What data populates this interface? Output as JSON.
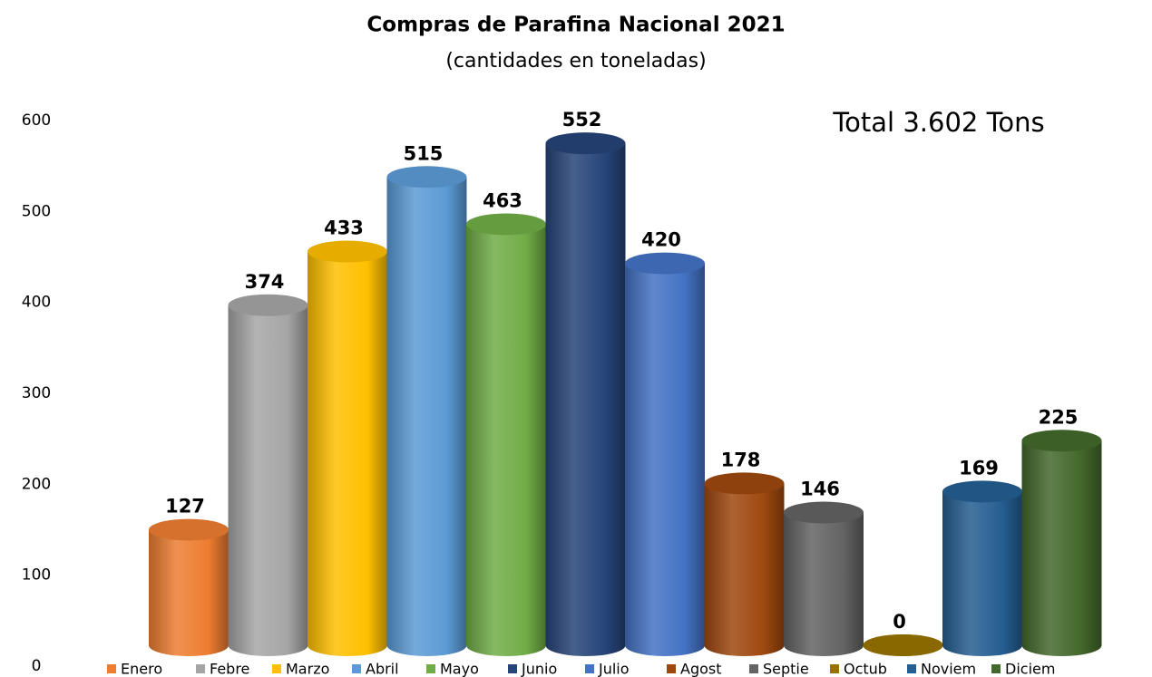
{
  "chart_data": {
    "type": "bar3d",
    "title": "Compras de Parafina Nacional 2021",
    "subtitle": "(cantidades en toneladas)",
    "annotation": "Total 3.602 Tons",
    "categories": [
      "Enero",
      "Febre",
      "Marzo",
      "Abril",
      "Mayo",
      "Junio",
      "Julio",
      "Agost",
      "Septie",
      "Octub",
      "Noviem",
      "Diciem"
    ],
    "values": [
      127,
      374,
      433,
      515,
      463,
      552,
      420,
      178,
      146,
      0,
      169,
      225
    ],
    "colors": [
      "#ED7D31",
      "#A5A5A5",
      "#FFC000",
      "#5B9BD5",
      "#70AD47",
      "#264478",
      "#4472C4",
      "#9E480E",
      "#636363",
      "#997300",
      "#255E91",
      "#43682B"
    ],
    "ylim": [
      0,
      600
    ],
    "yticks": [
      0,
      100,
      200,
      300,
      400,
      500,
      600
    ],
    "grid": false,
    "legend": "bottom"
  }
}
